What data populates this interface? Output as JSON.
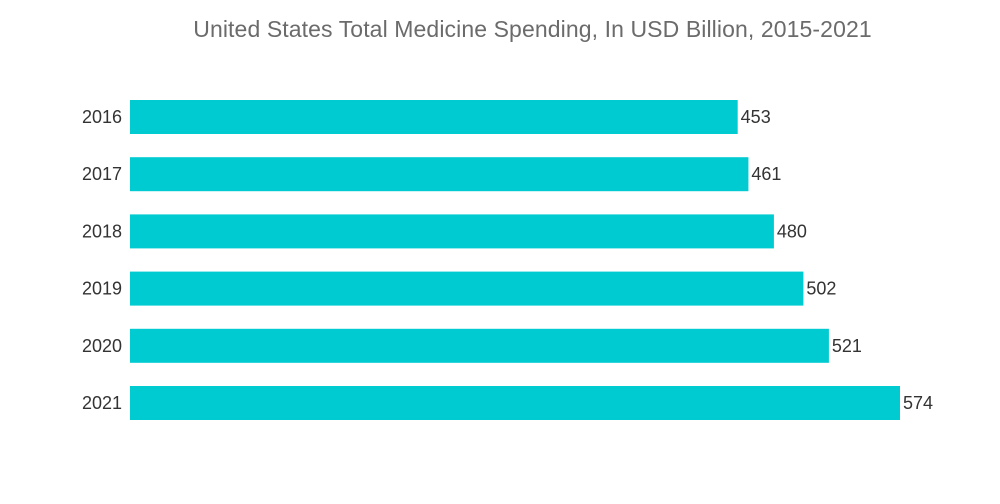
{
  "chart_data": {
    "type": "bar",
    "orientation": "horizontal",
    "title": "United States Total Medicine Spending, In USD Billion, 2015-2021",
    "categories": [
      "2016",
      "2017",
      "2018",
      "2019",
      "2020",
      "2021"
    ],
    "values": [
      453,
      461,
      480,
      502,
      521,
      574
    ],
    "value_labels": [
      "453",
      "461",
      "480",
      "502",
      "521",
      "574"
    ],
    "xlabel": "",
    "ylabel": "",
    "xlim": [
      0,
      574
    ],
    "grid": false,
    "legend": "none",
    "bar_color": "#00cbd0"
  }
}
